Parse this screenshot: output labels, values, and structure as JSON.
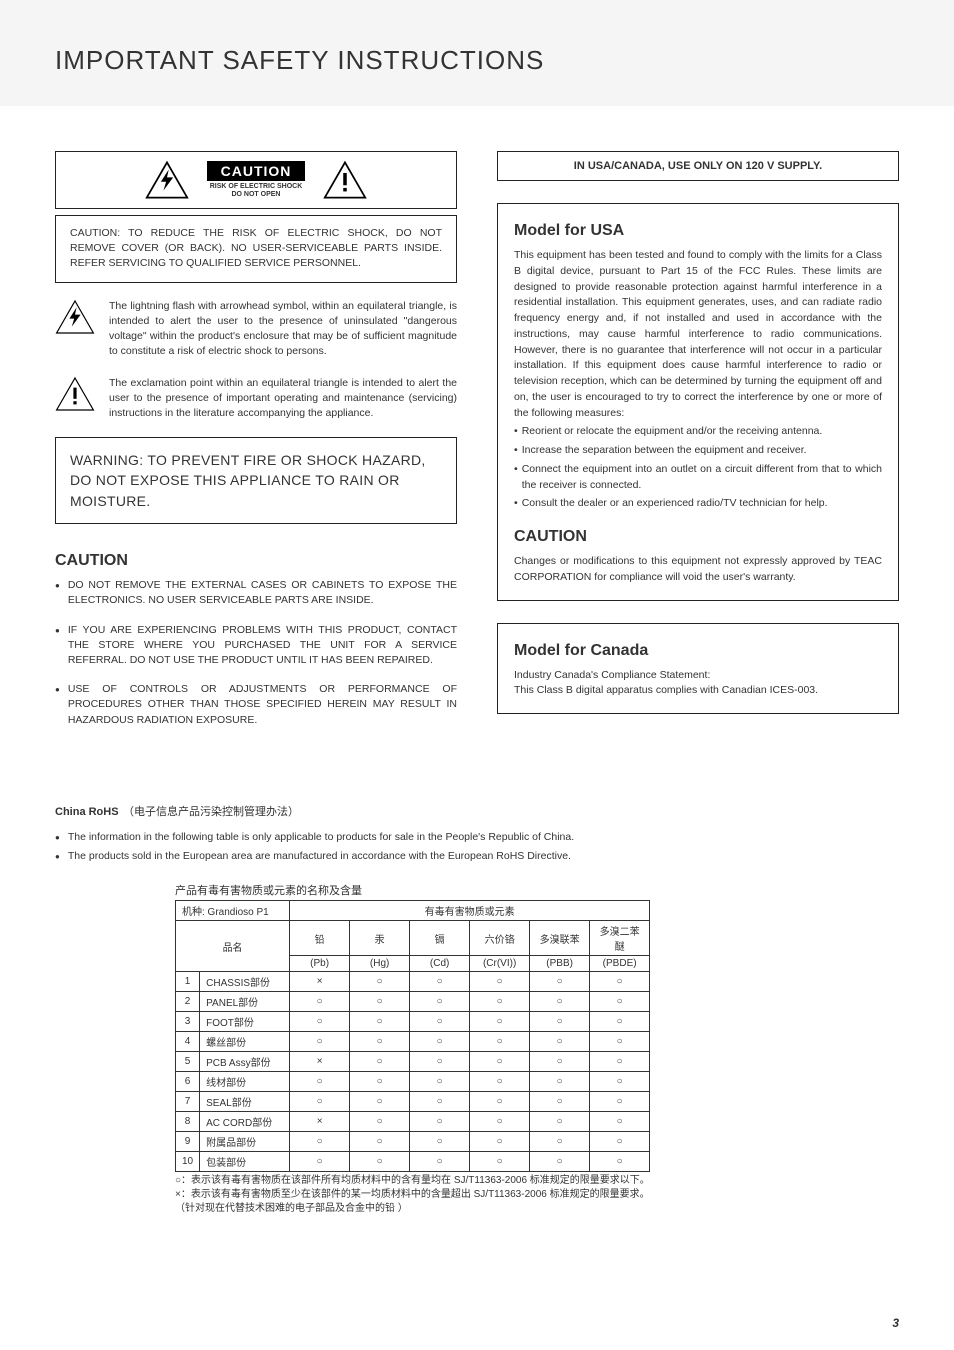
{
  "pageTitle": "IMPORTANT SAFETY INSTRUCTIONS",
  "cautionBox": {
    "heading": "CAUTION",
    "line1": "RISK OF ELECTRIC SHOCK",
    "line2": "DO NOT OPEN"
  },
  "cautionBody": "CAUTION: TO REDUCE THE RISK OF ELECTRIC SHOCK, DO NOT REMOVE COVER (OR BACK). NO USER-SERVICEABLE PARTS INSIDE. REFER SERVICING TO QUALIFIED SERVICE PERSONNEL.",
  "boltPara": "The lightning flash with arrowhead symbol, within an equilateral triangle, is intended to alert the user to the presence of uninsulated \"dangerous voltage\" within the product's enclosure that may be of sufficient magnitude to constitute a risk of electric shock to persons.",
  "exclPara": "The exclamation point within an equilateral triangle is intended to alert the user to the presence of important operating and maintenance (servicing) instructions in the literature accompanying the appliance.",
  "warningBox": "WARNING: TO PREVENT FIRE OR SHOCK HAZARD, DO NOT EXPOSE THIS APPLIANCE TO RAIN OR MOISTURE.",
  "leftCaution": {
    "title": "CAUTION",
    "bullets": [
      "DO NOT REMOVE THE EXTERNAL CASES OR CABINETS TO EXPOSE THE ELECTRONICS. NO USER SERVICEABLE PARTS ARE INSIDE.",
      "IF YOU ARE EXPERIENCING PROBLEMS WITH THIS PRODUCT, CONTACT THE STORE WHERE YOU PURCHASED THE UNIT FOR A SERVICE REFERRAL. DO NOT USE THE PRODUCT UNTIL IT HAS BEEN REPAIRED.",
      "USE OF CONTROLS OR ADJUSTMENTS OR PERFORMANCE OF PROCEDURES OTHER THAN THOSE SPECIFIED HEREIN MAY RESULT IN HAZARDOUS RADIATION EXPOSURE."
    ]
  },
  "usaSupply": "IN USA/CANADA, USE ONLY ON 120 V SUPPLY.",
  "usa": {
    "title": "Model for USA",
    "body": "This equipment has been tested and found to comply with the limits for a Class B digital device, pursuant to Part 15 of the FCC Rules. These limits are designed to provide reasonable protection against harmful interference in a residential installation. This equipment generates, uses, and can radiate radio frequency energy and, if not installed and used in accordance with the instructions, may cause harmful interference to radio communications. However, there is no guarantee that interference will not occur in a particular installation. If this equipment does cause harmful interference to radio or television reception, which can be determined by turning the equipment off and on, the user is encouraged to try to correct the interference by one or more of the following measures:",
    "bullets": [
      "Reorient or relocate the equipment and/or the receiving antenna.",
      "Increase the separation between the equipment and receiver.",
      "Connect the equipment into an outlet on a circuit different from that to which the receiver is connected.",
      "Consult the dealer or an experienced radio/TV technician for help."
    ]
  },
  "rightCaution": {
    "title": "CAUTION",
    "body": "Changes or modifications to this equipment not expressly approved by TEAC CORPORATION for compliance will void the user's warranty."
  },
  "canada": {
    "title": "Model for Canada",
    "line1": "Industry Canada's Compliance Statement:",
    "line2": "This Class B digital apparatus complies with Canadian ICES-003."
  },
  "china": {
    "titleEn": "China RoHS",
    "titleCn": "（电子信息产品污染控制管理办法）",
    "bullets": [
      "The information in the following table is only applicable to products for sale in the People's Republic of China.",
      "The products sold in the European area are manufactured in accordance with the European RoHS Directive."
    ],
    "tableTitle": "产品有毒有害物质或元素的名称及含量",
    "modelRow": "机种: Grandioso P1",
    "hazHeader": "有毒有害物质或元素",
    "nameHeader": "品名",
    "columns": [
      {
        "top": "铅",
        "bot": "(Pb)"
      },
      {
        "top": "汞",
        "bot": "(Hg)"
      },
      {
        "top": "镉",
        "bot": "(Cd)"
      },
      {
        "top": "六价铬",
        "bot": "(Cr(VI))"
      },
      {
        "top": "多溴联苯",
        "bot": "(PBB)"
      },
      {
        "top": "多溴二苯醚",
        "bot": "(PBDE)"
      }
    ],
    "rows": [
      {
        "idx": "1",
        "name": "CHASSIS部份",
        "vals": [
          "×",
          "○",
          "○",
          "○",
          "○",
          "○"
        ]
      },
      {
        "idx": "2",
        "name": "PANEL部份",
        "vals": [
          "○",
          "○",
          "○",
          "○",
          "○",
          "○"
        ]
      },
      {
        "idx": "3",
        "name": "FOOT部份",
        "vals": [
          "○",
          "○",
          "○",
          "○",
          "○",
          "○"
        ]
      },
      {
        "idx": "4",
        "name": "螺丝部份",
        "vals": [
          "○",
          "○",
          "○",
          "○",
          "○",
          "○"
        ]
      },
      {
        "idx": "5",
        "name": "PCB Assy部份",
        "vals": [
          "×",
          "○",
          "○",
          "○",
          "○",
          "○"
        ]
      },
      {
        "idx": "6",
        "name": "线材部份",
        "vals": [
          "○",
          "○",
          "○",
          "○",
          "○",
          "○"
        ]
      },
      {
        "idx": "7",
        "name": "SEAL部份",
        "vals": [
          "○",
          "○",
          "○",
          "○",
          "○",
          "○"
        ]
      },
      {
        "idx": "8",
        "name": "AC CORD部份",
        "vals": [
          "×",
          "○",
          "○",
          "○",
          "○",
          "○"
        ]
      },
      {
        "idx": "9",
        "name": "附属品部份",
        "vals": [
          "○",
          "○",
          "○",
          "○",
          "○",
          "○"
        ]
      },
      {
        "idx": "10",
        "name": "包装部份",
        "vals": [
          "○",
          "○",
          "○",
          "○",
          "○",
          "○"
        ]
      }
    ],
    "notes": [
      "○：表示该有毒有害物质在该部件所有均质材料中的含有量均在 SJ/T11363-2006 标准规定的限量要求以下。",
      "×：表示该有毒有害物质至少在该部件的某一均质材料中的含量超出 SJ/T11363-2006 标准规定的限量要求。",
      "（针对现在代替技术困难的电子部品及合金中的铅 ）"
    ]
  },
  "pageNum": "3"
}
